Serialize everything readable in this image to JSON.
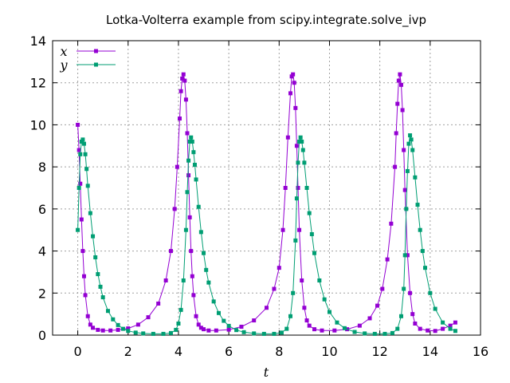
{
  "chart_data": {
    "type": "line",
    "title": "Lotka-Volterra example from scipy.integrate.solve_ivp",
    "xlabel": "t",
    "ylabel": "",
    "xlim": [
      -1,
      16
    ],
    "ylim": [
      0,
      14
    ],
    "xticks": [
      0,
      2,
      4,
      6,
      8,
      10,
      12,
      14,
      16
    ],
    "yticks": [
      0,
      2,
      4,
      6,
      8,
      10,
      12,
      14
    ],
    "grid": true,
    "legend": "top-left",
    "series": [
      {
        "name": "x",
        "color": "#9400d3",
        "marker": "square",
        "x": [
          0,
          0.05,
          0.1,
          0.15,
          0.2,
          0.25,
          0.3,
          0.4,
          0.5,
          0.6,
          0.8,
          1.0,
          1.3,
          1.6,
          2.0,
          2.4,
          2.8,
          3.2,
          3.5,
          3.7,
          3.85,
          3.95,
          4.05,
          4.1,
          4.15,
          4.2,
          4.25,
          4.3,
          4.35,
          4.4,
          4.45,
          4.5,
          4.55,
          4.6,
          4.7,
          4.8,
          4.9,
          5.0,
          5.2,
          5.5,
          6.0,
          6.5,
          7.0,
          7.5,
          7.8,
          8.0,
          8.15,
          8.25,
          8.35,
          8.45,
          8.5,
          8.55,
          8.6,
          8.65,
          8.7,
          8.75,
          8.8,
          8.9,
          9.0,
          9.1,
          9.2,
          9.4,
          9.7,
          10.2,
          10.7,
          11.2,
          11.6,
          11.9,
          12.1,
          12.3,
          12.45,
          12.6,
          12.65,
          12.7,
          12.75,
          12.8,
          12.85,
          12.9,
          12.95,
          13.0,
          13.1,
          13.2,
          13.3,
          13.4,
          13.6,
          13.9,
          14.2,
          14.5,
          14.8,
          15.0
        ],
        "values": [
          10.0,
          8.8,
          7.2,
          5.5,
          4.0,
          2.8,
          1.9,
          0.9,
          0.5,
          0.35,
          0.25,
          0.22,
          0.22,
          0.25,
          0.32,
          0.5,
          0.85,
          1.5,
          2.6,
          4.0,
          6.0,
          8.0,
          10.3,
          11.6,
          12.2,
          12.4,
          12.1,
          11.2,
          9.6,
          7.6,
          5.6,
          4.0,
          2.8,
          1.9,
          0.9,
          0.5,
          0.35,
          0.28,
          0.22,
          0.22,
          0.26,
          0.4,
          0.7,
          1.3,
          2.2,
          3.2,
          5.0,
          7.0,
          9.4,
          11.5,
          12.3,
          12.4,
          12.0,
          10.8,
          9.0,
          7.0,
          5.0,
          2.6,
          1.3,
          0.7,
          0.45,
          0.28,
          0.22,
          0.22,
          0.28,
          0.45,
          0.8,
          1.4,
          2.2,
          3.6,
          5.3,
          8.0,
          9.6,
          11.0,
          12.1,
          12.4,
          11.9,
          10.7,
          8.8,
          6.9,
          3.8,
          2.0,
          1.0,
          0.55,
          0.3,
          0.22,
          0.2,
          0.3,
          0.45,
          0.6
        ]
      },
      {
        "name": "y",
        "color": "#009e73",
        "marker": "square",
        "x": [
          0,
          0.05,
          0.1,
          0.15,
          0.2,
          0.25,
          0.3,
          0.35,
          0.4,
          0.5,
          0.6,
          0.7,
          0.8,
          0.9,
          1.0,
          1.2,
          1.4,
          1.6,
          1.8,
          2.0,
          2.3,
          2.6,
          3.0,
          3.4,
          3.7,
          3.9,
          4.0,
          4.1,
          4.2,
          4.3,
          4.35,
          4.4,
          4.45,
          4.5,
          4.55,
          4.6,
          4.65,
          4.7,
          4.8,
          4.9,
          5.0,
          5.1,
          5.2,
          5.4,
          5.6,
          5.8,
          6.0,
          6.3,
          6.6,
          7.0,
          7.4,
          7.8,
          8.1,
          8.3,
          8.45,
          8.55,
          8.65,
          8.7,
          8.75,
          8.8,
          8.85,
          8.9,
          8.95,
          9.0,
          9.1,
          9.2,
          9.3,
          9.4,
          9.6,
          9.8,
          10.0,
          10.3,
          10.6,
          11.0,
          11.4,
          11.8,
          12.2,
          12.5,
          12.7,
          12.85,
          12.95,
          13.0,
          13.05,
          13.1,
          13.15,
          13.2,
          13.25,
          13.3,
          13.4,
          13.5,
          13.6,
          13.7,
          13.8,
          14.0,
          14.2,
          14.5,
          14.8,
          15.0
        ],
        "values": [
          5.0,
          7.0,
          8.6,
          9.2,
          9.3,
          9.1,
          8.6,
          7.9,
          7.1,
          5.8,
          4.7,
          3.7,
          2.9,
          2.3,
          1.8,
          1.15,
          0.75,
          0.48,
          0.3,
          0.2,
          0.12,
          0.08,
          0.06,
          0.06,
          0.1,
          0.25,
          0.55,
          1.2,
          2.6,
          5.0,
          6.8,
          8.3,
          9.2,
          9.4,
          9.2,
          8.7,
          8.1,
          7.4,
          6.1,
          4.9,
          3.9,
          3.1,
          2.5,
          1.6,
          1.05,
          0.68,
          0.44,
          0.24,
          0.14,
          0.08,
          0.06,
          0.06,
          0.12,
          0.3,
          0.9,
          2.0,
          4.5,
          6.5,
          8.2,
          9.2,
          9.4,
          9.2,
          8.8,
          8.2,
          7.0,
          5.8,
          4.8,
          3.9,
          2.6,
          1.7,
          1.1,
          0.6,
          0.33,
          0.15,
          0.08,
          0.06,
          0.06,
          0.1,
          0.3,
          0.9,
          2.2,
          3.8,
          6.0,
          7.8,
          9.1,
          9.5,
          9.3,
          8.8,
          7.5,
          6.2,
          5.0,
          4.0,
          3.2,
          2.0,
          1.25,
          0.6,
          0.3,
          0.2
        ]
      }
    ]
  }
}
